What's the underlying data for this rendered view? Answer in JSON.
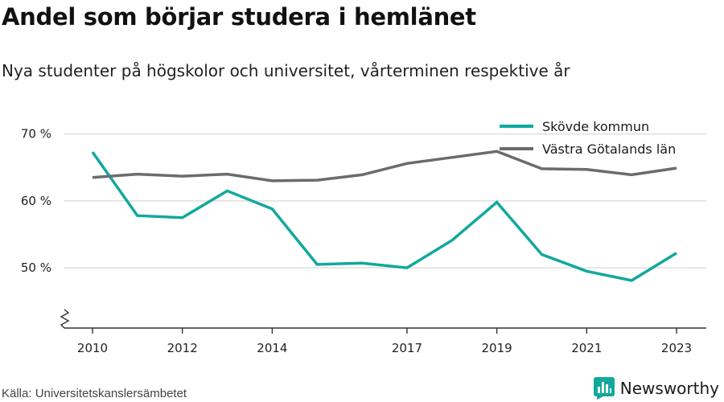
{
  "title": "Andel som börjar studera i hemlänet",
  "subtitle": "Nya studenter på högskolor och universitet, vårterminen respektive år",
  "source": "Källa: Universitetskanslersämbetet",
  "brand": "Newsworthy",
  "colors": {
    "accent": "#12a89d",
    "gray": "#6b6b6b",
    "grid": "#d9d9d9",
    "axis": "#333333"
  },
  "chart_data": {
    "type": "line",
    "x": [
      2010,
      2011,
      2012,
      2013,
      2014,
      2015,
      2016,
      2017,
      2018,
      2019,
      2020,
      2021,
      2022,
      2023
    ],
    "x_tick_labels": [
      "2010",
      "2012",
      "2014",
      "2017",
      "2019",
      "2021",
      "2023"
    ],
    "y_ticks": [
      50,
      60,
      70
    ],
    "y_tick_labels": [
      "50 %",
      "60 %",
      "70 %"
    ],
    "ylim": [
      41,
      72
    ],
    "xlabel": "",
    "ylabel": "",
    "grid": true,
    "axis_break": true,
    "legend_position": "top-right",
    "series": [
      {
        "name": "Skövde kommun",
        "color": "#12a89d",
        "values": [
          67.3,
          57.8,
          57.5,
          61.5,
          58.8,
          50.5,
          50.7,
          50.0,
          54.1,
          59.8,
          52.0,
          49.5,
          48.1,
          52.2
        ]
      },
      {
        "name": "Västra Götalands län",
        "color": "#6b6b6b",
        "values": [
          63.5,
          64.0,
          63.7,
          64.0,
          63.0,
          63.1,
          63.9,
          65.6,
          66.5,
          67.4,
          64.8,
          64.7,
          63.9,
          64.9
        ]
      }
    ]
  }
}
